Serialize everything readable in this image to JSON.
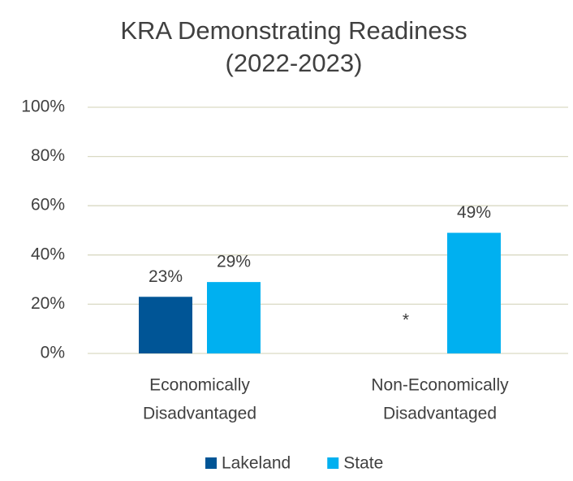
{
  "chart_data": {
    "type": "bar",
    "title": [
      "KRA Demonstrating Readiness",
      "(2022-2023)"
    ],
    "categories": [
      [
        "Economically",
        "Disadvantaged"
      ],
      [
        "Non-Economically",
        "Disadvantaged"
      ]
    ],
    "series": [
      {
        "name": "Lakeland",
        "color": "#005596",
        "values": [
          23,
          null
        ],
        "value_labels": [
          "23%",
          "*"
        ]
      },
      {
        "name": "State",
        "color": "#00b0f0",
        "values": [
          29,
          49
        ],
        "value_labels": [
          "29%",
          "49%"
        ]
      }
    ],
    "ylim": [
      0,
      100
    ],
    "yticks": [
      {
        "value": 0,
        "label": "0%"
      },
      {
        "value": 20,
        "label": "20%"
      },
      {
        "value": 40,
        "label": "40%"
      },
      {
        "value": 60,
        "label": "60%"
      },
      {
        "value": 80,
        "label": "80%"
      },
      {
        "value": 100,
        "label": "100%"
      }
    ],
    "grid": true,
    "legend": "bottom"
  }
}
